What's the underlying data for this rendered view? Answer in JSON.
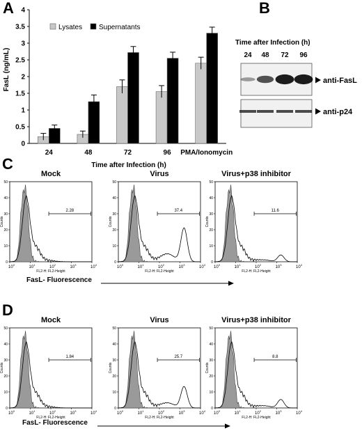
{
  "panel_letters": {
    "a": "A",
    "b": "B",
    "c": "C",
    "d": "D"
  },
  "chart_data": {
    "type": "bar",
    "categories": [
      "24",
      "48",
      "72",
      "96",
      "PMA/Ionomycin"
    ],
    "series": [
      {
        "name": "Lysates",
        "values": [
          0.2,
          0.27,
          1.7,
          1.55,
          2.4
        ],
        "errors": [
          0.1,
          0.1,
          0.2,
          0.18,
          0.18
        ],
        "color": "#c8c8c8"
      },
      {
        "name": "Supernatants",
        "values": [
          0.45,
          1.25,
          2.72,
          2.55,
          3.3
        ],
        "errors": [
          0.1,
          0.2,
          0.18,
          0.18,
          0.18
        ],
        "color": "#000000"
      }
    ],
    "ylabel": "FasL (ng/mL)",
    "xlabel": "Time after Infection (h)",
    "ylim": [
      0,
      4
    ],
    "yticks": [
      "0",
      "0.5",
      "1",
      "1.5",
      "2",
      "2.5",
      "3",
      "3.5",
      "4"
    ],
    "legend_position": "top-left"
  },
  "blot": {
    "title": "Time after Infection (h)",
    "lanes": [
      "24",
      "48",
      "72",
      "96"
    ],
    "band_labels": [
      "anti-FasL",
      "anti-p24"
    ],
    "fasl_intensity": [
      0.15,
      0.55,
      0.85,
      0.85
    ],
    "p24_intensity": [
      0.8,
      0.8,
      0.8,
      0.8
    ]
  },
  "flow_c": {
    "panels": [
      {
        "title": "Mock",
        "gate_value": "2.28",
        "second_peak": 0.0
      },
      {
        "title": "Virus",
        "gate_value": "37.4",
        "second_peak": 0.6
      },
      {
        "title": "Virus+p38 inhibitor",
        "gate_value": "11.6",
        "second_peak": 0.12
      }
    ],
    "xaxis_title": "FasL- Fluorescence"
  },
  "flow_d": {
    "panels": [
      {
        "title": "Mock",
        "gate_value": "1.84",
        "second_peak": 0.0
      },
      {
        "title": "Virus",
        "gate_value": "25.7",
        "second_peak": 0.38
      },
      {
        "title": "Virus+p38 inhibitor",
        "gate_value": "8.8",
        "second_peak": 0.15
      }
    ],
    "xaxis_title": "FasL- Fluorescence"
  },
  "flow_axes": {
    "ylabel": "Counts",
    "xlabel": "FL2-H: FL2-Height",
    "yticks": [
      "0",
      "10",
      "20",
      "30",
      "40",
      "50"
    ],
    "xtick_exponents": [
      "0",
      "1",
      "2",
      "3",
      "4"
    ]
  }
}
